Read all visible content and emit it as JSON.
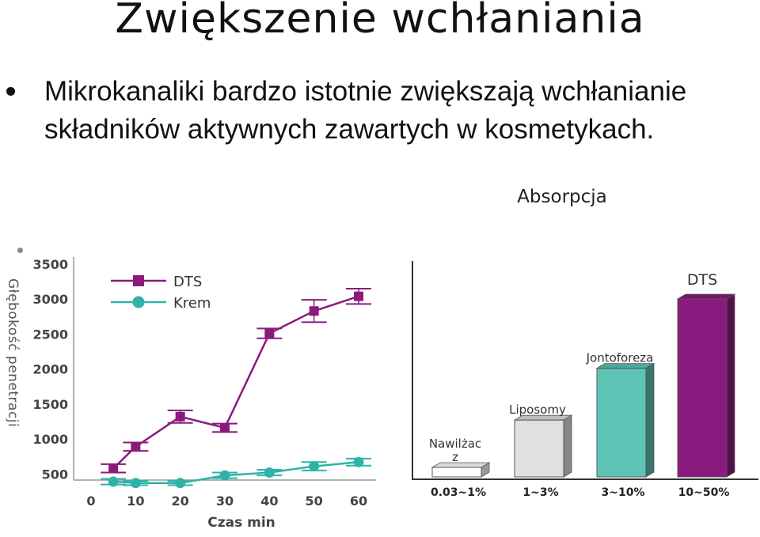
{
  "slide": {
    "title": "Zwiększenie wchłaniania",
    "bullet_line1": "Mikrokanaliki  bardzo istotnie zwiększają wchłanianie",
    "bullet_line2": "składników aktywnych zawartych w kosmetykach."
  },
  "colors": {
    "dts": "#8B1A7E",
    "krem": "#2DB3A8",
    "axis": "#444444"
  },
  "chart_data": [
    {
      "type": "line",
      "ylabel": "Głębokość penetracji",
      "xlabel": "Czas  min",
      "x": [
        5,
        10,
        20,
        30,
        40,
        50,
        60
      ],
      "xticks": [
        0,
        10,
        20,
        30,
        40,
        50,
        60
      ],
      "yticks": [
        500,
        1000,
        1500,
        2000,
        2500,
        3000,
        3500
      ],
      "xlim": [
        0,
        60
      ],
      "ylim": [
        300,
        3500
      ],
      "legend_position": "top-left",
      "series": [
        {
          "name": "DTS",
          "values": [
            580,
            890,
            1320,
            1160,
            2510,
            2830,
            3040
          ],
          "errors": [
            60,
            60,
            90,
            60,
            70,
            160,
            110
          ]
        },
        {
          "name": "Krem",
          "values": [
            390,
            370,
            370,
            480,
            520,
            610,
            670
          ],
          "errors": [
            40,
            30,
            30,
            40,
            40,
            60,
            50
          ]
        }
      ]
    },
    {
      "type": "bar",
      "title": "Absorpcja",
      "categories": [
        "0.03~1%",
        "1~3%",
        "3~10%",
        "10~50%"
      ],
      "bar_labels": [
        "Nawilżac\nz",
        "Liposomy",
        "Jontoforeza",
        "DTS"
      ],
      "values": [
        1,
        3,
        10,
        50
      ],
      "colors": [
        "#ffffff",
        "#e0e0e0",
        "#5ec4b6",
        "#8B1A7E"
      ]
    }
  ]
}
